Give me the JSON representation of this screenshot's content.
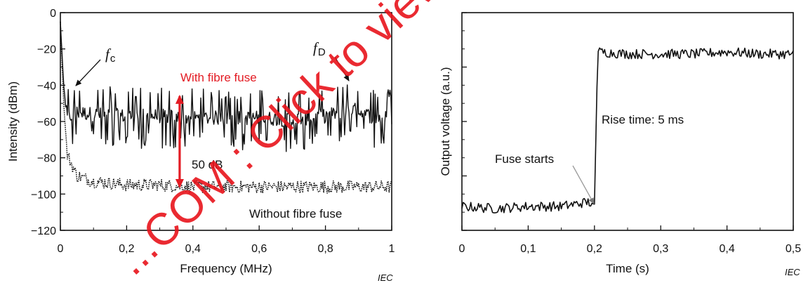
{
  "colors": {
    "trace": "#111111",
    "accent": "#e31b23",
    "watermark": "#e8141b"
  },
  "watermark": {
    "text": "...COM : Click to view the full P..."
  },
  "chart_data": [
    {
      "type": "line",
      "xlabel": "Frequency  (MHz)",
      "ylabel": "Intensity  (dBm)",
      "xlim": [
        0,
        1
      ],
      "ylim": [
        -120,
        0
      ],
      "xticks": [
        0,
        0.2,
        0.4,
        0.6,
        0.8,
        1.0
      ],
      "xtick_labels": [
        "0",
        "0,2",
        "0,4",
        "0,6",
        "0,8",
        "1"
      ],
      "yticks": [
        0,
        -20,
        -40,
        -60,
        -80,
        -100,
        -120
      ],
      "ytick_labels": [
        "0",
        "−20",
        "−40",
        "−60",
        "−80",
        "−100",
        "−120"
      ],
      "series": [
        {
          "name": "With fibre fuse",
          "style": "solid",
          "x": [
            0.0,
            0.01,
            0.02,
            0.05,
            0.1,
            0.2,
            0.3,
            0.4,
            0.5,
            0.6,
            0.7,
            0.8,
            0.88,
            0.95,
            1.0
          ],
          "y": [
            -5,
            -40,
            -58,
            -55,
            -56,
            -57,
            -57,
            -58,
            -58,
            -58,
            -59,
            -57,
            -53,
            -58,
            -58
          ]
        },
        {
          "name": "Without fibre fuse",
          "style": "dotted",
          "x": [
            0.0,
            0.01,
            0.02,
            0.05,
            0.1,
            0.2,
            0.3,
            0.4,
            0.5,
            0.6,
            0.7,
            0.8,
            0.9,
            1.0
          ],
          "y": [
            -5,
            -50,
            -78,
            -90,
            -93,
            -95,
            -95,
            -96,
            -96,
            -96,
            -96,
            -96,
            -96,
            -96
          ]
        }
      ],
      "annotations": {
        "fc_symbol": "f",
        "fc_sub": "c",
        "fd_symbol": "f",
        "fd_sub": "D",
        "with_label": "With fibre fuse",
        "without_label": "Without fibre fuse",
        "delta_label": "50 dB",
        "arrow_x": 0.36,
        "arrow_top": -46,
        "arrow_bottom": -96
      },
      "iec": "IEC"
    },
    {
      "type": "line",
      "xlabel": "Time  (s)",
      "ylabel": "Output voltage  (a.u.)",
      "xlim": [
        0,
        0.5
      ],
      "ylim": [
        0,
        1
      ],
      "xticks": [
        0,
        0.1,
        0.2,
        0.3,
        0.4,
        0.5
      ],
      "xtick_labels": [
        "0",
        "0,1",
        "0,2",
        "0,3",
        "0,4",
        "0,5"
      ],
      "series": [
        {
          "name": "",
          "x": [
            0.0,
            0.05,
            0.1,
            0.15,
            0.19,
            0.2,
            0.205,
            0.25,
            0.3,
            0.35,
            0.4,
            0.45,
            0.5
          ],
          "y": [
            0.11,
            0.1,
            0.11,
            0.11,
            0.13,
            0.12,
            0.82,
            0.81,
            0.81,
            0.81,
            0.82,
            0.81,
            0.81
          ]
        }
      ],
      "annotations": {
        "rise_label": "Rise time: 5 ms",
        "fuse_label": "Fuse starts"
      },
      "iec": "IEC"
    }
  ]
}
